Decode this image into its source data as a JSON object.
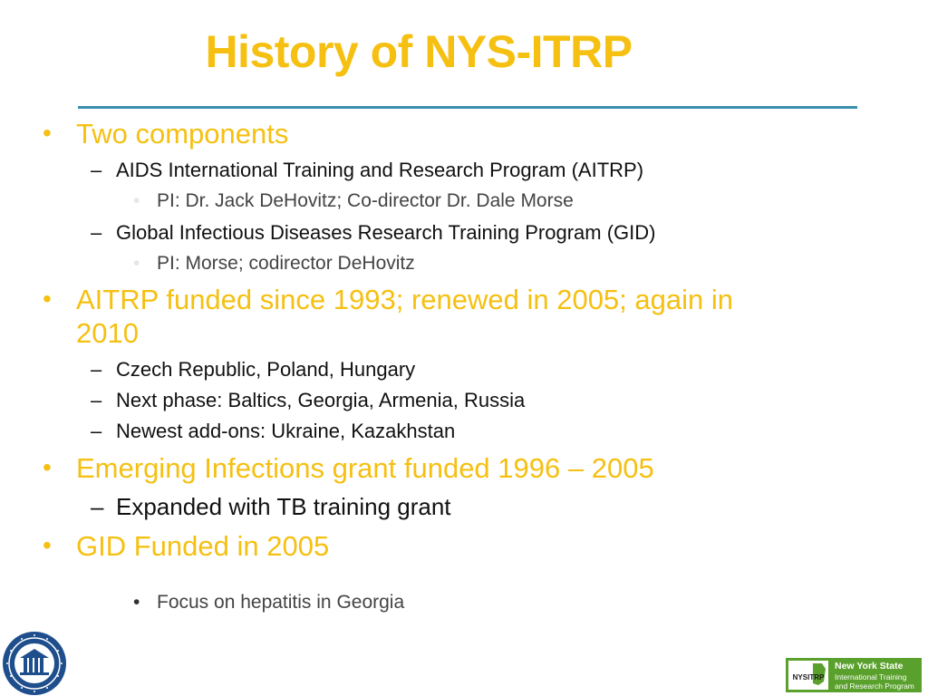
{
  "slide": {
    "title": "History of NYS-ITRP",
    "items": [
      {
        "level": 1,
        "text": "Two components"
      },
      {
        "level": 2,
        "text": "AIDS International Training and Research Program (AITRP)"
      },
      {
        "level": 3,
        "text": "PI: Dr. Jack DeHovitz; Co-director Dr. Dale Morse"
      },
      {
        "level": 2,
        "text": "Global Infectious Diseases Research Training Program (GID)"
      },
      {
        "level": 3,
        "text": "PI: Morse; codirector DeHovitz"
      },
      {
        "level": 1,
        "text": "AITRP funded since 1993; renewed in 2005; again in",
        "text2": "2010"
      },
      {
        "level": 2,
        "text": "Czech Republic, Poland, Hungary"
      },
      {
        "level": 2,
        "text": "Next phase: Baltics, Georgia, Armenia, Russia"
      },
      {
        "level": 2,
        "text": "Newest add-ons: Ukraine, Kazakhstan"
      },
      {
        "level": 1,
        "text": "Emerging Infections grant funded 1996 – 2005"
      },
      {
        "level": 2,
        "text": "Expanded with TB training grant"
      },
      {
        "level": 1,
        "text": "GID Funded in 2005"
      },
      {
        "level": 3,
        "text": "Focus on hepatitis in Georgia"
      }
    ]
  },
  "marks": {
    "level1": "•",
    "level2": "–",
    "level3": "•"
  },
  "logos": {
    "right_badge": "NYSITRP",
    "right_line1": "New York State",
    "right_line2": "International Training",
    "right_line3": "and Research Program"
  },
  "colors": {
    "title": "#f5c012",
    "rule": "#3a8fb0",
    "text": "#111111",
    "logo_green": "#5aa02c"
  }
}
